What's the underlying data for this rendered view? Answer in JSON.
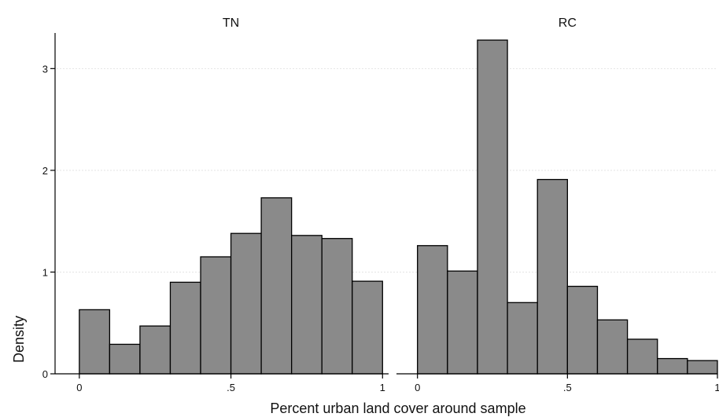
{
  "chart_data": {
    "type": "bar",
    "xlabel": "Percent urban land cover around sample",
    "ylabel": "Density",
    "ylim": [
      0,
      3.35
    ],
    "y_ticks": [
      0,
      1,
      2,
      3
    ],
    "y_tick_labels": [
      "0",
      "1",
      "2",
      "3"
    ],
    "grid": true,
    "panels": [
      {
        "title": "TN",
        "x_ticks": [
          0,
          0.5,
          1
        ],
        "x_tick_labels": [
          "0",
          ".5",
          "1"
        ],
        "xlim": [
          -0.08,
          1.02
        ],
        "bin_width": 0.1,
        "bin_starts": [
          0.0,
          0.1,
          0.2,
          0.3,
          0.4,
          0.5,
          0.6,
          0.7,
          0.8,
          0.9
        ],
        "values": [
          0.63,
          0.29,
          0.47,
          0.9,
          1.15,
          1.38,
          1.73,
          1.36,
          1.33,
          0.91
        ]
      },
      {
        "title": "RC",
        "x_ticks": [
          0,
          0.5,
          1
        ],
        "x_tick_labels": [
          "0",
          ".5",
          "1"
        ],
        "xlim": [
          -0.07,
          1.0
        ],
        "bin_width": 0.1,
        "bin_starts": [
          0.0,
          0.1,
          0.2,
          0.3,
          0.4,
          0.5,
          0.6,
          0.7,
          0.8,
          0.9
        ],
        "values": [
          1.26,
          1.01,
          3.28,
          0.7,
          1.91,
          0.86,
          0.53,
          0.34,
          0.15,
          0.13
        ]
      }
    ]
  }
}
